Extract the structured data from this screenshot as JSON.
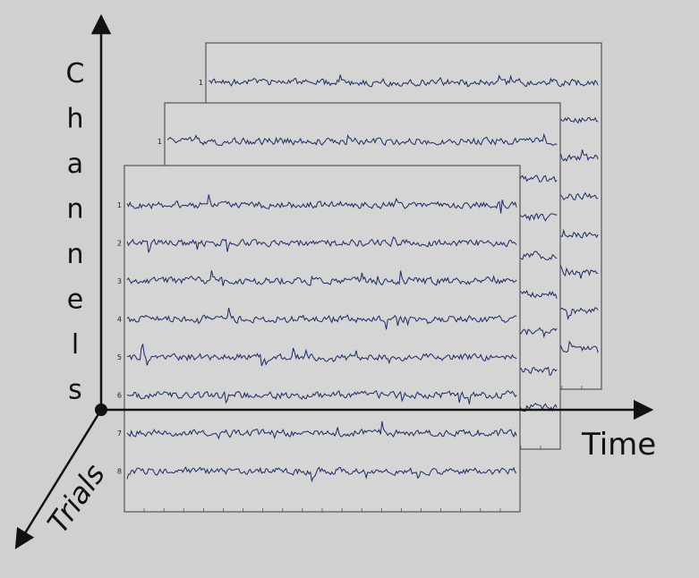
{
  "axes": {
    "y_label": "Channels",
    "x_label": "Time",
    "z_label": "Trials"
  },
  "colors": {
    "background": "#cfd0cf",
    "panel_fill": "#d4d5d4",
    "panel_border": "#555555",
    "trace": "#1c2a66",
    "axis": "#111111"
  },
  "panels": [
    {
      "name": "trial-back",
      "channels": [
        "1"
      ]
    },
    {
      "name": "trial-middle",
      "channels": [
        "1"
      ]
    },
    {
      "name": "trial-front",
      "channels": [
        "1",
        "2",
        "3",
        "4",
        "5",
        "6",
        "7",
        "8"
      ]
    }
  ]
}
